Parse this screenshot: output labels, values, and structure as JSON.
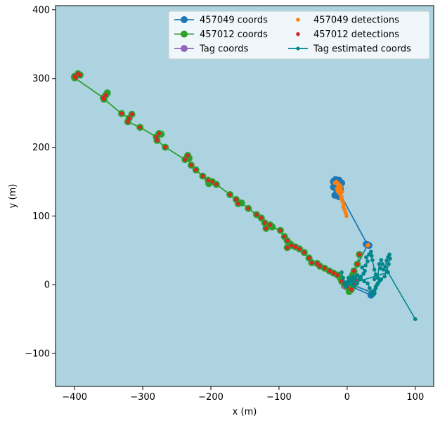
{
  "chart_data": {
    "type": "line",
    "title": "",
    "xlabel": "x (m)",
    "ylabel": "y (m)",
    "xlim": [
      -428,
      127
    ],
    "ylim": [
      -148,
      406
    ],
    "xticks": [
      -400,
      -300,
      -200,
      -100,
      0,
      100
    ],
    "yticks": [
      -100,
      0,
      100,
      200,
      300,
      400
    ],
    "background": "#add3e0",
    "grid": false,
    "legend": {
      "placement": "top-right",
      "columns": 2,
      "entries": [
        {
          "label": "457049 coords",
          "color": "#1f77b4",
          "style": "line-marker"
        },
        {
          "label": "457049 detections",
          "color": "#ff7f0e",
          "style": "marker"
        },
        {
          "label": "457012 coords",
          "color": "#2ca02c",
          "style": "line-marker"
        },
        {
          "label": "457012 detections",
          "color": "#d62728",
          "style": "marker"
        },
        {
          "label": "Tag coords",
          "color": "#9467bd",
          "style": "line-marker"
        },
        {
          "label": "Tag estimated coords",
          "color": "#00868b",
          "style": "line-small-marker"
        }
      ]
    },
    "series": [
      {
        "id": "coords-457049",
        "color": "#1f77b4",
        "points": [
          [
            -20,
            150
          ],
          [
            -17,
            153
          ],
          [
            -12,
            152
          ],
          [
            -8,
            148
          ],
          [
            -10,
            140
          ],
          [
            -14,
            135
          ],
          [
            -12,
            128
          ],
          [
            -18,
            130
          ],
          [
            -20,
            142
          ],
          [
            -20,
            150
          ],
          [
            30,
            58
          ],
          [
            32,
            57
          ],
          [
            28,
            59
          ],
          [
            30,
            58
          ],
          [
            0,
            0
          ],
          [
            35,
            -15
          ],
          [
            38,
            -12
          ],
          [
            2,
            2
          ]
        ]
      },
      {
        "id": "det-457049",
        "color": "#ff7f0e",
        "points": [
          [
            -16,
            150
          ],
          [
            -14,
            148
          ],
          [
            -12,
            146
          ],
          [
            -10,
            144
          ],
          [
            -13,
            143
          ],
          [
            -9,
            141
          ],
          [
            -11,
            138
          ],
          [
            -14,
            136
          ],
          [
            -12,
            134
          ],
          [
            -10,
            131
          ],
          [
            -8,
            128
          ],
          [
            -9,
            125
          ],
          [
            -7,
            122
          ],
          [
            -6,
            119
          ],
          [
            -5,
            116
          ],
          [
            -6,
            113
          ],
          [
            -4,
            110
          ],
          [
            -3,
            107
          ],
          [
            -2,
            104
          ],
          [
            -1,
            100
          ],
          [
            -18,
            148
          ],
          [
            -15,
            140
          ],
          [
            -7,
            135
          ],
          [
            30,
            57
          ],
          [
            31,
            58
          ]
        ]
      },
      {
        "id": "coords-457012",
        "color": "#2ca02c",
        "points": [
          [
            -400,
            303
          ],
          [
            -395,
            307
          ],
          [
            -392,
            305
          ],
          [
            -400,
            301
          ],
          [
            -358,
            272
          ],
          [
            -354,
            276
          ],
          [
            -352,
            279
          ],
          [
            -357,
            270
          ],
          [
            -331,
            249
          ],
          [
            -320,
            242
          ],
          [
            -316,
            248
          ],
          [
            -322,
            237
          ],
          [
            -304,
            229
          ],
          [
            -280,
            215
          ],
          [
            -276,
            220
          ],
          [
            -273,
            219
          ],
          [
            -279,
            210
          ],
          [
            -267,
            200
          ],
          [
            -238,
            182
          ],
          [
            -234,
            188
          ],
          [
            -232,
            184
          ],
          [
            -229,
            174
          ],
          [
            -222,
            167
          ],
          [
            -212,
            158
          ],
          [
            -204,
            152
          ],
          [
            -198,
            150
          ],
          [
            -203,
            147
          ],
          [
            -192,
            146
          ],
          [
            -172,
            131
          ],
          [
            -163,
            124
          ],
          [
            -160,
            118
          ],
          [
            -155,
            119
          ],
          [
            -145,
            111
          ],
          [
            -133,
            102
          ],
          [
            -126,
            97
          ],
          [
            -121,
            90
          ],
          [
            -119,
            82
          ],
          [
            -113,
            87
          ],
          [
            -110,
            84
          ],
          [
            -98,
            79
          ],
          [
            -92,
            70
          ],
          [
            -88,
            64
          ],
          [
            -82,
            57
          ],
          [
            -88,
            54
          ],
          [
            -83,
            59
          ],
          [
            -76,
            55
          ],
          [
            -70,
            52
          ],
          [
            -63,
            47
          ],
          [
            -56,
            39
          ],
          [
            -52,
            32
          ],
          [
            -44,
            31
          ],
          [
            -40,
            27
          ],
          [
            -33,
            24
          ],
          [
            -26,
            20
          ],
          [
            -20,
            17
          ],
          [
            -14,
            14
          ],
          [
            -10,
            10
          ],
          [
            -8,
            5
          ],
          [
            -4,
            1
          ],
          [
            0,
            -3
          ],
          [
            3,
            -6
          ],
          [
            6,
            -7
          ],
          [
            3,
            -10
          ],
          [
            6,
            -5
          ],
          [
            10,
            0
          ],
          [
            12,
            6
          ],
          [
            8,
            14
          ],
          [
            10,
            20
          ],
          [
            15,
            30
          ],
          [
            18,
            44
          ]
        ]
      },
      {
        "id": "det-457012",
        "color": "#d62728",
        "points": [
          [
            -400,
            303
          ],
          [
            -395,
            307
          ],
          [
            -392,
            305
          ],
          [
            -398,
            301
          ],
          [
            -358,
            272
          ],
          [
            -354,
            276
          ],
          [
            -357,
            270
          ],
          [
            -331,
            249
          ],
          [
            -320,
            242
          ],
          [
            -316,
            248
          ],
          [
            -322,
            237
          ],
          [
            -304,
            229
          ],
          [
            -280,
            215
          ],
          [
            -276,
            220
          ],
          [
            -279,
            210
          ],
          [
            -267,
            200
          ],
          [
            -238,
            182
          ],
          [
            -234,
            188
          ],
          [
            -229,
            174
          ],
          [
            -222,
            167
          ],
          [
            -212,
            158
          ],
          [
            -204,
            152
          ],
          [
            -198,
            150
          ],
          [
            -192,
            146
          ],
          [
            -172,
            131
          ],
          [
            -163,
            124
          ],
          [
            -160,
            118
          ],
          [
            -145,
            111
          ],
          [
            -133,
            102
          ],
          [
            -126,
            97
          ],
          [
            -121,
            90
          ],
          [
            -119,
            82
          ],
          [
            -113,
            87
          ],
          [
            -98,
            79
          ],
          [
            -92,
            70
          ],
          [
            -88,
            64
          ],
          [
            -82,
            57
          ],
          [
            -88,
            54
          ],
          [
            -76,
            55
          ],
          [
            -70,
            52
          ],
          [
            -63,
            47
          ],
          [
            -56,
            39
          ],
          [
            -52,
            32
          ],
          [
            -44,
            31
          ],
          [
            -40,
            27
          ],
          [
            -33,
            24
          ],
          [
            -26,
            20
          ],
          [
            -20,
            17
          ],
          [
            -14,
            14
          ],
          [
            -8,
            5
          ],
          [
            -4,
            1
          ],
          [
            0,
            -3
          ],
          [
            6,
            -7
          ],
          [
            10,
            0
          ],
          [
            12,
            6
          ],
          [
            10,
            20
          ],
          [
            15,
            30
          ],
          [
            18,
            44
          ]
        ]
      },
      {
        "id": "coords-tag",
        "color": "#9467bd",
        "points": [
          [
            -5,
            -2
          ],
          [
            -2,
            -4
          ],
          [
            1,
            -3
          ],
          [
            3,
            -1
          ],
          [
            0,
            1
          ],
          [
            -3,
            0
          ]
        ]
      },
      {
        "id": "est-tag",
        "color": "#00868b",
        "points": [
          [
            -8,
            18
          ],
          [
            -6,
            10
          ],
          [
            -4,
            3
          ],
          [
            -2,
            -2
          ],
          [
            0,
            4
          ],
          [
            2,
            10
          ],
          [
            4,
            2
          ],
          [
            6,
            7
          ],
          [
            8,
            12
          ],
          [
            10,
            5
          ],
          [
            12,
            10
          ],
          [
            15,
            14
          ],
          [
            18,
            8
          ],
          [
            20,
            12
          ],
          [
            24,
            16
          ],
          [
            26,
            20
          ],
          [
            22,
            25
          ],
          [
            27,
            28
          ],
          [
            30,
            34
          ],
          [
            28,
            40
          ],
          [
            32,
            44
          ],
          [
            35,
            48
          ],
          [
            36,
            42
          ],
          [
            37,
            36
          ],
          [
            40,
            22
          ],
          [
            42,
            15
          ],
          [
            40,
            8
          ],
          [
            45,
            10
          ],
          [
            47,
            30
          ],
          [
            50,
            36
          ],
          [
            52,
            30
          ],
          [
            49,
            24
          ],
          [
            53,
            22
          ],
          [
            56,
            26
          ],
          [
            58,
            35
          ],
          [
            60,
            40
          ],
          [
            62,
            44
          ],
          [
            63,
            38
          ],
          [
            61,
            30
          ],
          [
            58,
            20
          ],
          [
            55,
            12
          ],
          [
            50,
            8
          ],
          [
            46,
            3
          ],
          [
            42,
            -3
          ],
          [
            39,
            -10
          ],
          [
            37,
            -16
          ],
          [
            40,
            -12
          ],
          [
            42,
            -5
          ],
          [
            45,
            2
          ],
          [
            48,
            6
          ],
          [
            44,
            0
          ],
          [
            40,
            -8
          ],
          [
            36,
            -14
          ],
          [
            33,
            -5
          ],
          [
            30,
            2
          ],
          [
            25,
            5
          ],
          [
            20,
            8
          ],
          [
            15,
            2
          ],
          [
            10,
            -2
          ],
          [
            5,
            3
          ],
          [
            0,
            0
          ],
          [
            60,
            18
          ],
          [
            100,
            -50
          ]
        ]
      }
    ]
  }
}
